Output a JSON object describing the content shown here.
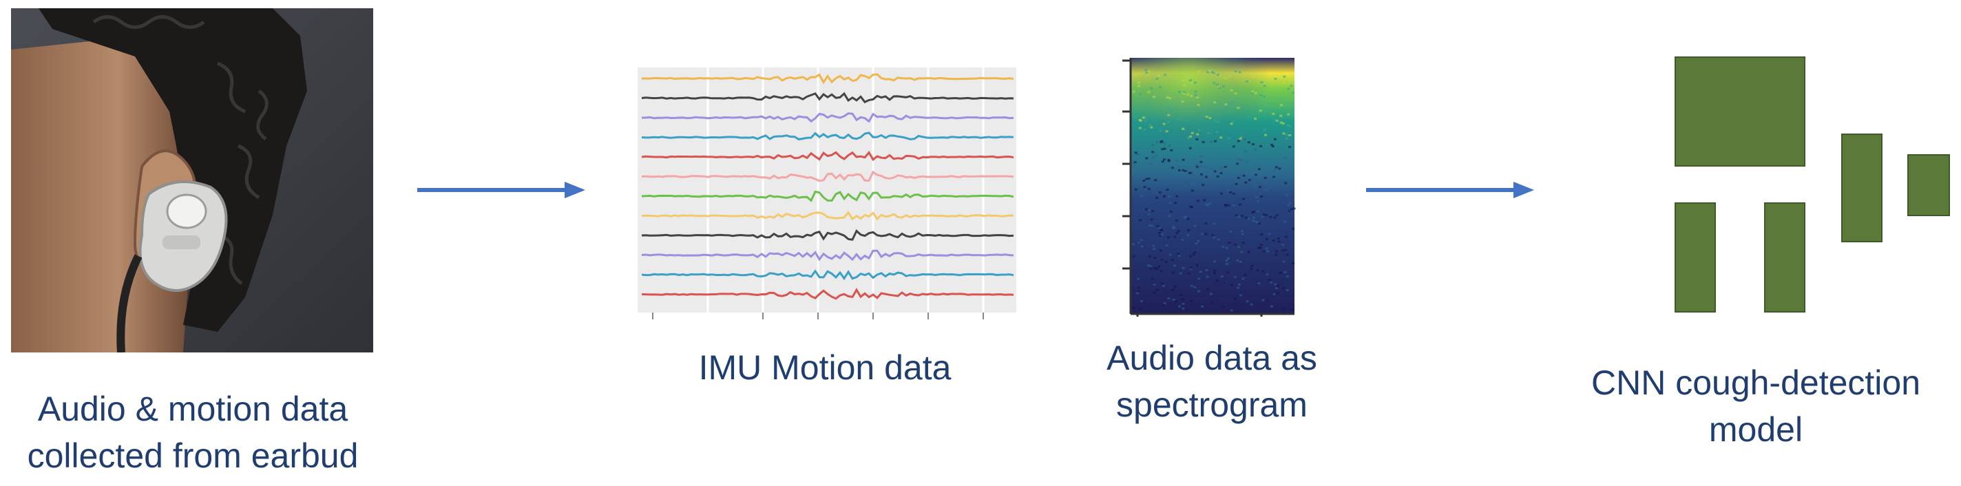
{
  "stages": {
    "earbud": {
      "caption_line1": "Audio & motion data",
      "caption_line2": "collected from earbud"
    },
    "imu": {
      "caption": "IMU Motion data"
    },
    "spectrogram": {
      "caption_line1": "Audio data as",
      "caption_line2": "spectrogram"
    },
    "model": {
      "caption_line1": "CNN cough-detection",
      "caption_line2": "model"
    }
  },
  "colors": {
    "caption_text": "#1f3d6e",
    "arrow": "#4472c4",
    "model_block": "#5b7a3a",
    "photo_background": "#3e4045",
    "plot_background": "#ebebeb"
  },
  "imu_traces": [
    "#f0b64a",
    "#444444",
    "#9b8fe0",
    "#3aa0c8",
    "#d9534f",
    "#f4a6a6",
    "#6cc04a",
    "#f3c96b",
    "#444444",
    "#9b8fe0",
    "#3aa0c8",
    "#d9534f"
  ],
  "icons": [
    "earbud-photo",
    "right-arrow",
    "imu-plot",
    "spectrogram-image",
    "cnn-blocks"
  ]
}
